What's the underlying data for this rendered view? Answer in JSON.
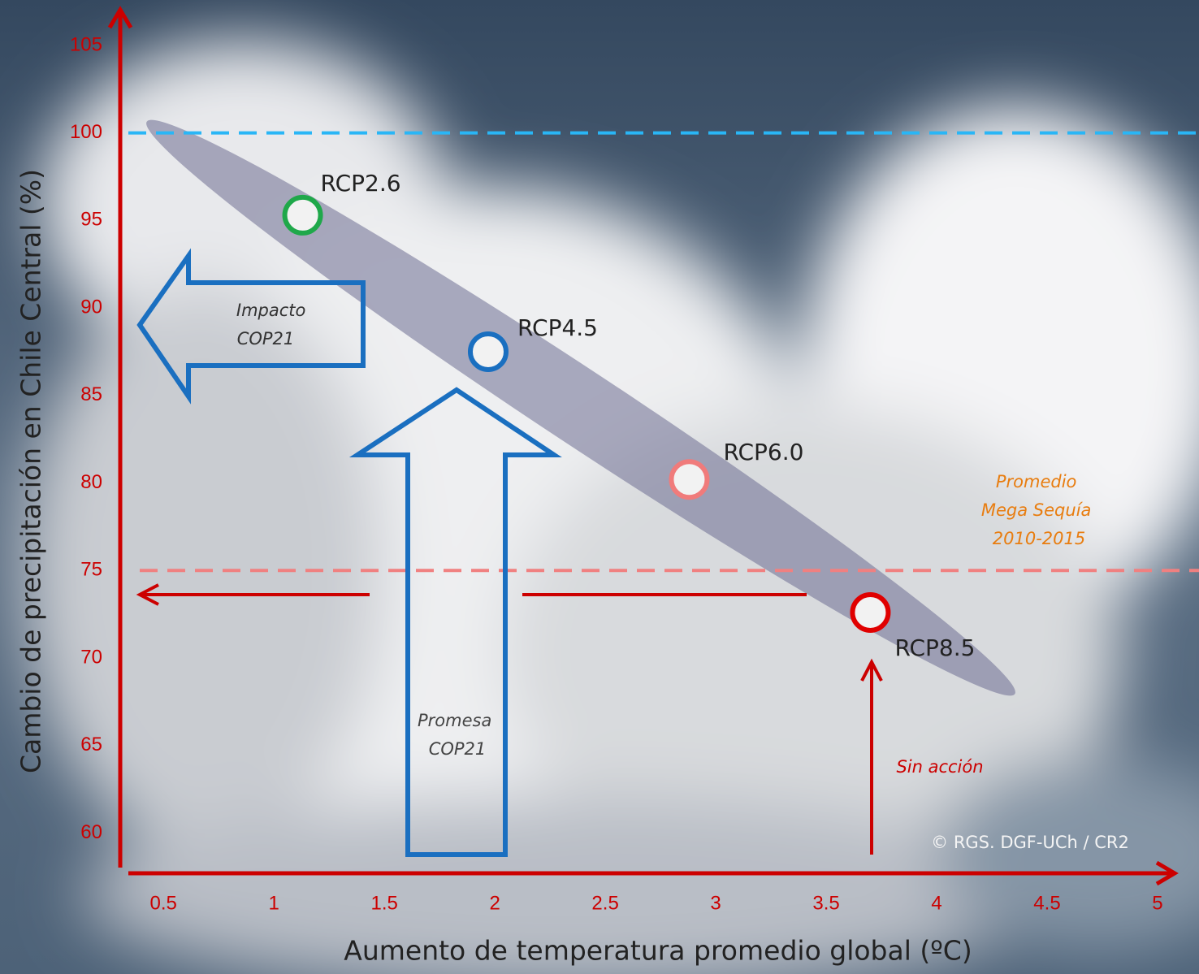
{
  "chart_data": {
    "type": "scatter",
    "x_label": "Aumento de temperatura promedio global (ºC)",
    "y_label": "Cambio de precipitación en Chile Central (%)",
    "xlim": [
      0.33,
      5.07
    ],
    "xticks": [
      0.5,
      1,
      1.5,
      2,
      2.5,
      3,
      3.5,
      4,
      4.5,
      5
    ],
    "ylim": [
      57.7,
      106.9
    ],
    "yticks": [
      60,
      65,
      70,
      75,
      80,
      85,
      90,
      95,
      100,
      105
    ],
    "series": [
      {
        "name": "RCP2.6",
        "color": "#1fa84a",
        "x": [
          1.13
        ],
        "values": [
          95.3
        ]
      },
      {
        "name": "RCP4.5",
        "color": "#1a6fc0",
        "x": [
          1.97
        ],
        "values": [
          87.5
        ]
      },
      {
        "name": "RCP6.0",
        "color": "#f07b7b",
        "x": [
          2.88
        ],
        "values": [
          80.2
        ]
      },
      {
        "name": "RCP8.5",
        "color": "#e00000",
        "x": [
          3.7
        ],
        "values": [
          72.6
        ]
      }
    ],
    "reference_lines": [
      {
        "value": 100,
        "color": "#29b6f6"
      },
      {
        "value": 75,
        "color": "#f08080"
      }
    ],
    "annotations": {
      "impacto": [
        "Impacto",
        "COP21"
      ],
      "promesa": [
        "Promesa",
        "COP21"
      ],
      "sin_accion": "Sin acción",
      "mega_sequia": [
        "Promedio",
        "Mega Sequía",
        "2010-2015"
      ],
      "credit": "© RGS. DGF-UCh / CR2"
    }
  }
}
